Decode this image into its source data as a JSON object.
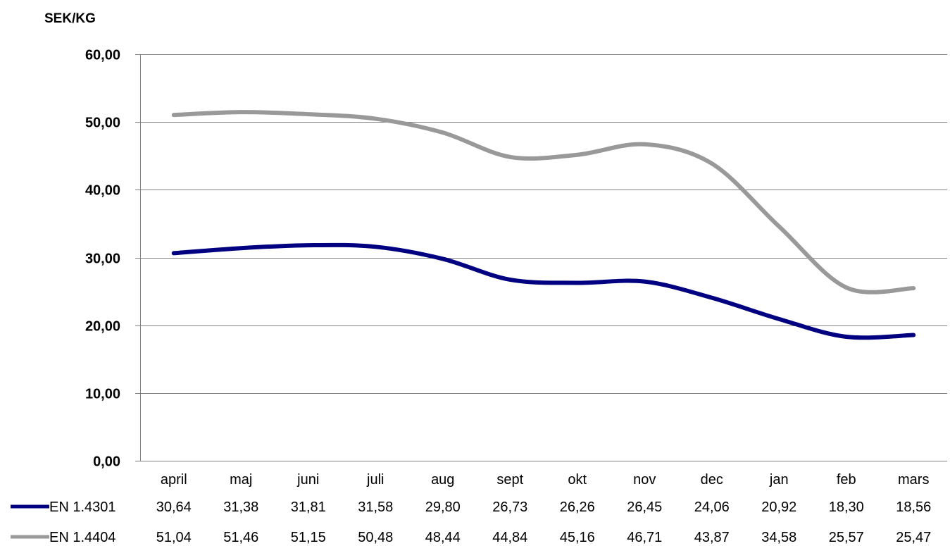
{
  "chart_data": {
    "type": "line",
    "ylabel": "SEK/KG",
    "ylim": [
      0,
      60
    ],
    "yticks": [
      "0,00",
      "10,00",
      "20,00",
      "30,00",
      "40,00",
      "50,00",
      "60,00"
    ],
    "categories": [
      "april",
      "maj",
      "juni",
      "juli",
      "aug",
      "sept",
      "okt",
      "nov",
      "dec",
      "jan",
      "feb",
      "mars"
    ],
    "grid": true,
    "legend": "data-table",
    "smooth": true,
    "series": [
      {
        "name": "EN 1.4301",
        "color": "#000080",
        "values": [
          30.64,
          31.38,
          31.81,
          31.58,
          29.8,
          26.73,
          26.26,
          26.45,
          24.06,
          20.92,
          18.3,
          18.56
        ],
        "labels": [
          "30,64",
          "31,38",
          "31,81",
          "31,58",
          "29,80",
          "26,73",
          "26,26",
          "26,45",
          "24,06",
          "20,92",
          "18,30",
          "18,56"
        ]
      },
      {
        "name": "EN 1.4404",
        "color": "#999999",
        "values": [
          51.04,
          51.46,
          51.15,
          50.48,
          48.44,
          44.84,
          45.16,
          46.71,
          43.87,
          34.58,
          25.57,
          25.47
        ],
        "labels": [
          "51,04",
          "51,46",
          "51,15",
          "50,48",
          "48,44",
          "44,84",
          "45,16",
          "46,71",
          "43,87",
          "34,58",
          "25,57",
          "25,47"
        ]
      }
    ]
  }
}
